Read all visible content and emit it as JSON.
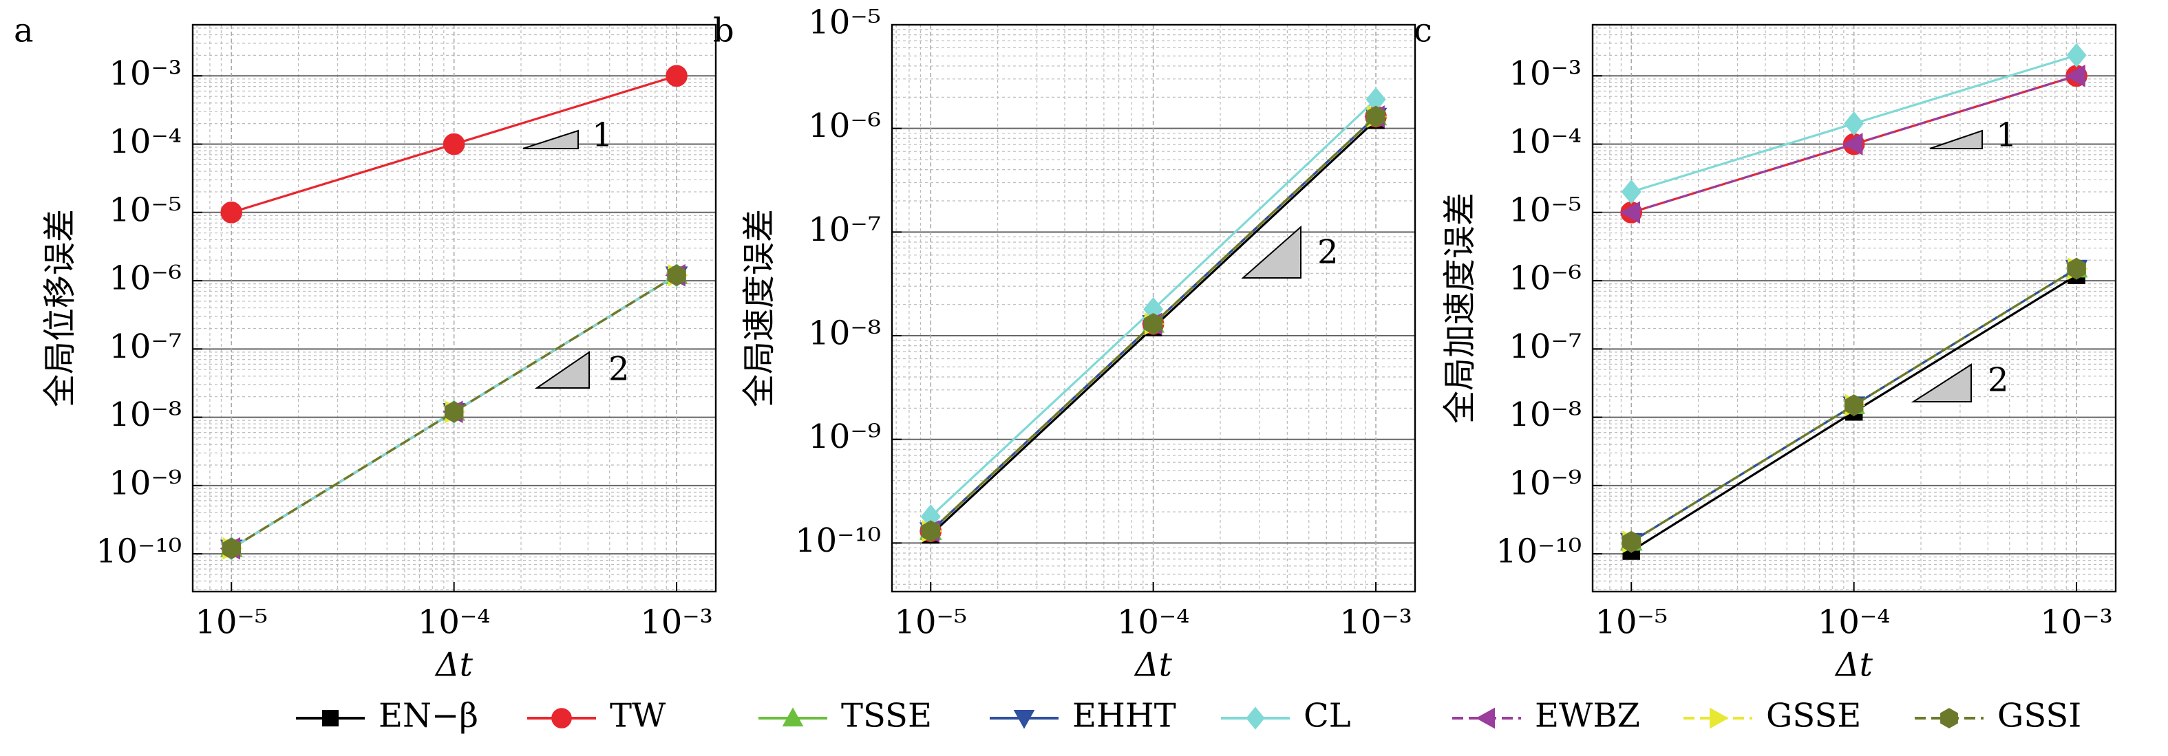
{
  "chart_data": [
    {
      "type": "line",
      "label": "a",
      "ylabel": "全局位移误差",
      "xlabel": "Δt",
      "xlog": true,
      "ylog": true,
      "grid": true,
      "x": [
        1e-05,
        0.0001,
        0.001
      ],
      "xlim": [
        6.7e-06,
        0.0015
      ],
      "xticks": [
        {
          "value": 1e-05,
          "label": "10⁻⁵"
        },
        {
          "value": 0.0001,
          "label": "10⁻⁴"
        },
        {
          "value": 0.001,
          "label": "10⁻³"
        }
      ],
      "ylim": [
        2.8e-11,
        0.0056
      ],
      "yticks": [
        {
          "value": 1e-10,
          "label": "10⁻¹⁰"
        },
        {
          "value": 1e-09,
          "label": "10⁻⁹"
        },
        {
          "value": 1e-08,
          "label": "10⁻⁸"
        },
        {
          "value": 1e-07,
          "label": "10⁻⁷"
        },
        {
          "value": 1e-06,
          "label": "10⁻⁶"
        },
        {
          "value": 1e-05,
          "label": "10⁻⁵"
        },
        {
          "value": 0.0001,
          "label": "10⁻⁴"
        },
        {
          "value": 0.001,
          "label": "10⁻³"
        }
      ],
      "annotations": [
        {
          "text": "1"
        },
        {
          "text": "2"
        }
      ],
      "series": [
        {
          "name": "EN−β",
          "color": "#000000",
          "marker": "square",
          "linestyle": "solid",
          "values": [
            1.2e-10,
            1.2e-08,
            1.2e-06
          ]
        },
        {
          "name": "TW",
          "color": "#e8262e",
          "marker": "circle",
          "linestyle": "solid",
          "values": [
            1e-05,
            0.0001,
            0.001
          ]
        },
        {
          "name": "TSSE",
          "color": "#6cbf3c",
          "marker": "triangle-up",
          "linestyle": "solid",
          "values": [
            1.2e-10,
            1.2e-08,
            1.2e-06
          ]
        },
        {
          "name": "EHHT",
          "color": "#2f4fa0",
          "marker": "triangle-down",
          "linestyle": "solid",
          "values": [
            1.2e-10,
            1.2e-08,
            1.2e-06
          ]
        },
        {
          "name": "CL",
          "color": "#7fd9d6",
          "marker": "diamond",
          "linestyle": "solid",
          "values": [
            1.2e-10,
            1.2e-08,
            1.2e-06
          ]
        },
        {
          "name": "EWBZ",
          "color": "#9b3d9c",
          "marker": "triangle-left",
          "linestyle": "dashed",
          "values": [
            1.2e-10,
            1.2e-08,
            1.2e-06
          ]
        },
        {
          "name": "GSSE",
          "color": "#e8e832",
          "marker": "triangle-right",
          "linestyle": "dashed",
          "values": [
            1.2e-10,
            1.2e-08,
            1.2e-06
          ]
        },
        {
          "name": "GSSI",
          "color": "#6b7a2a",
          "marker": "hexagon",
          "linestyle": "dashed",
          "values": [
            1.2e-10,
            1.2e-08,
            1.2e-06
          ]
        }
      ]
    },
    {
      "type": "line",
      "label": "b",
      "ylabel": "全局速度误差",
      "xlabel": "Δt",
      "xlog": true,
      "ylog": true,
      "grid": true,
      "x": [
        1e-05,
        0.0001,
        0.001
      ],
      "xlim": [
        6.7e-06,
        0.0015
      ],
      "xticks": [
        {
          "value": 1e-05,
          "label": "10⁻⁵"
        },
        {
          "value": 0.0001,
          "label": "10⁻⁴"
        },
        {
          "value": 0.001,
          "label": "10⁻³"
        }
      ],
      "ylim": [
        3.4e-11,
        1e-05
      ],
      "yticks": [
        {
          "value": 1e-10,
          "label": "10⁻¹⁰"
        },
        {
          "value": 1e-09,
          "label": "10⁻⁹"
        },
        {
          "value": 1e-08,
          "label": "10⁻⁸"
        },
        {
          "value": 1e-07,
          "label": "10⁻⁷"
        },
        {
          "value": 1e-06,
          "label": "10⁻⁶"
        },
        {
          "value": 1e-05,
          "label": "10⁻⁵"
        }
      ],
      "annotations": [
        {
          "text": "2"
        }
      ],
      "series": [
        {
          "name": "EN−β",
          "color": "#000000",
          "marker": "square",
          "linestyle": "solid",
          "values": [
            1.2e-10,
            1.2e-08,
            1.2e-06
          ]
        },
        {
          "name": "TW",
          "color": "#e8262e",
          "marker": "circle",
          "linestyle": "solid",
          "values": [
            1.3e-10,
            1.3e-08,
            1.3e-06
          ]
        },
        {
          "name": "TSSE",
          "color": "#6cbf3c",
          "marker": "triangle-up",
          "linestyle": "solid",
          "values": [
            1.3e-10,
            1.3e-08,
            1.3e-06
          ]
        },
        {
          "name": "EHHT",
          "color": "#2f4fa0",
          "marker": "triangle-down",
          "linestyle": "solid",
          "values": [
            1.3e-10,
            1.3e-08,
            1.3e-06
          ]
        },
        {
          "name": "CL",
          "color": "#7fd9d6",
          "marker": "diamond",
          "linestyle": "solid",
          "values": [
            1.8e-10,
            1.8e-08,
            1.9e-06
          ]
        },
        {
          "name": "EWBZ",
          "color": "#9b3d9c",
          "marker": "triangle-left",
          "linestyle": "dashed",
          "values": [
            1.3e-10,
            1.3e-08,
            1.3e-06
          ]
        },
        {
          "name": "GSSE",
          "color": "#e8e832",
          "marker": "triangle-right",
          "linestyle": "dashed",
          "values": [
            1.3e-10,
            1.3e-08,
            1.3e-06
          ]
        },
        {
          "name": "GSSI",
          "color": "#6b7a2a",
          "marker": "hexagon",
          "linestyle": "dashed",
          "values": [
            1.3e-10,
            1.3e-08,
            1.3e-06
          ]
        }
      ]
    },
    {
      "type": "line",
      "label": "c",
      "ylabel": "全局加速度误差",
      "xlabel": "Δt",
      "xlog": true,
      "ylog": true,
      "grid": true,
      "x": [
        1e-05,
        0.0001,
        0.001
      ],
      "xlim": [
        6.7e-06,
        0.0015
      ],
      "xticks": [
        {
          "value": 1e-05,
          "label": "10⁻⁵"
        },
        {
          "value": 0.0001,
          "label": "10⁻⁴"
        },
        {
          "value": 0.001,
          "label": "10⁻³"
        }
      ],
      "ylim": [
        2.8e-11,
        0.0056
      ],
      "yticks": [
        {
          "value": 1e-10,
          "label": "10⁻¹⁰"
        },
        {
          "value": 1e-09,
          "label": "10⁻⁹"
        },
        {
          "value": 1e-08,
          "label": "10⁻⁸"
        },
        {
          "value": 1e-07,
          "label": "10⁻⁷"
        },
        {
          "value": 1e-06,
          "label": "10⁻⁶"
        },
        {
          "value": 1e-05,
          "label": "10⁻⁵"
        },
        {
          "value": 0.0001,
          "label": "10⁻⁴"
        },
        {
          "value": 0.001,
          "label": "10⁻³"
        }
      ],
      "annotations": [
        {
          "text": "1"
        },
        {
          "text": "2"
        }
      ],
      "series": [
        {
          "name": "EN−β",
          "color": "#000000",
          "marker": "square",
          "linestyle": "solid",
          "values": [
            1.1e-10,
            1.2e-08,
            1.2e-06
          ]
        },
        {
          "name": "TW",
          "color": "#e8262e",
          "marker": "circle",
          "linestyle": "solid",
          "values": [
            1e-05,
            0.0001,
            0.001
          ]
        },
        {
          "name": "TSSE",
          "color": "#6cbf3c",
          "marker": "triangle-up",
          "linestyle": "solid",
          "values": [
            1.5e-10,
            1.5e-08,
            1.5e-06
          ]
        },
        {
          "name": "EHHT",
          "color": "#2f4fa0",
          "marker": "triangle-down",
          "linestyle": "solid",
          "values": [
            1.5e-10,
            1.5e-08,
            1.5e-06
          ]
        },
        {
          "name": "CL",
          "color": "#7fd9d6",
          "marker": "diamond",
          "linestyle": "solid",
          "values": [
            2e-05,
            0.0002,
            0.002
          ]
        },
        {
          "name": "EWBZ",
          "color": "#9b3d9c",
          "marker": "triangle-left",
          "linestyle": "dashed",
          "values": [
            1e-05,
            0.0001,
            0.001
          ]
        },
        {
          "name": "GSSE",
          "color": "#e8e832",
          "marker": "triangle-right",
          "linestyle": "dashed",
          "values": [
            1.5e-10,
            1.5e-08,
            1.5e-06
          ]
        },
        {
          "name": "GSSI",
          "color": "#6b7a2a",
          "marker": "hexagon",
          "linestyle": "dashed",
          "values": [
            1.5e-10,
            1.5e-08,
            1.5e-06
          ]
        }
      ]
    }
  ]
}
